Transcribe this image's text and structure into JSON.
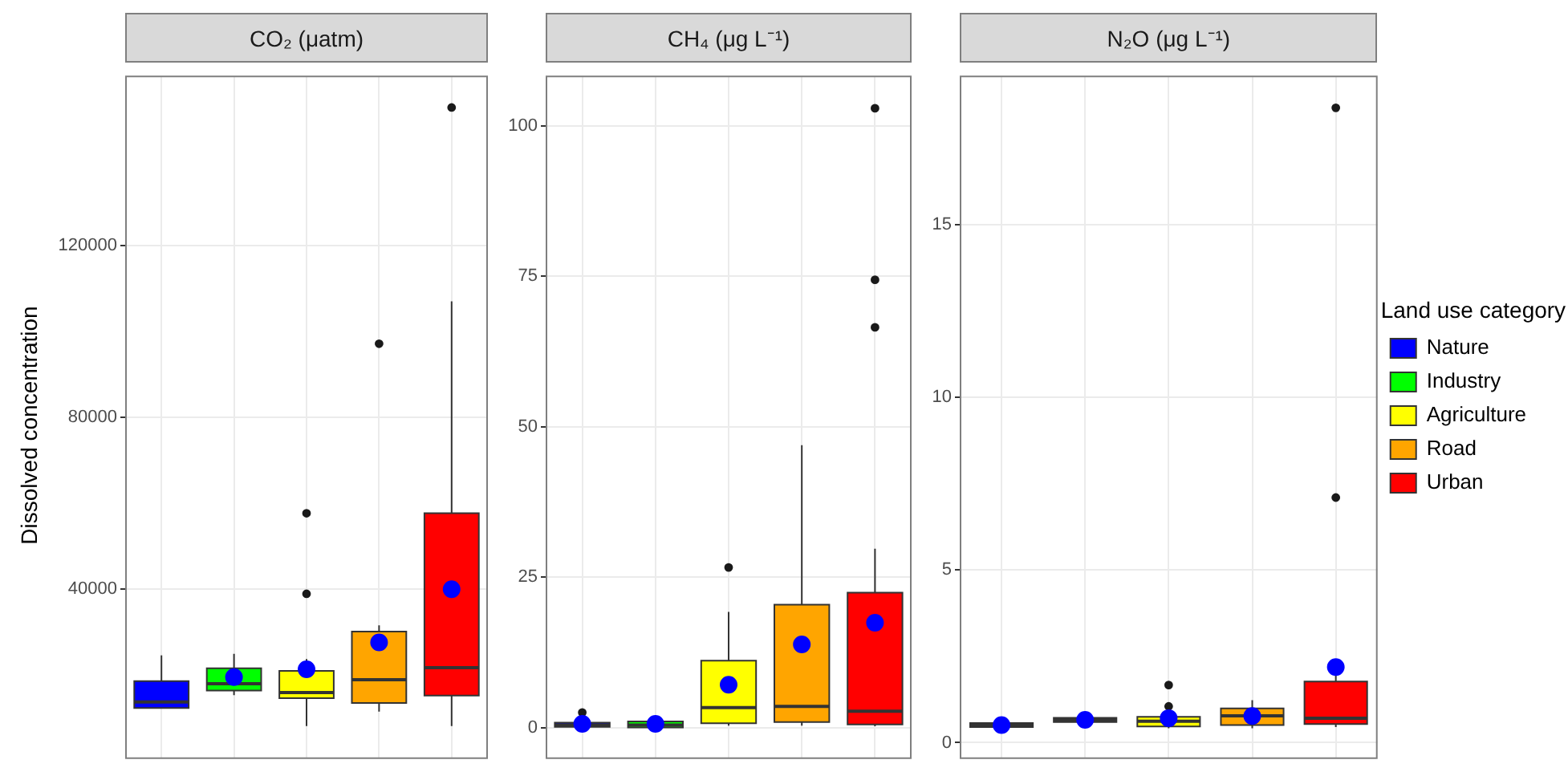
{
  "chart_data": [
    {
      "type": "box",
      "title": "CO₂ (μatm)",
      "ylabel": "Dissolved concentration",
      "categories": [
        null,
        null,
        null,
        null,
        null
      ],
      "series": [
        {
          "color": "#0000ff",
          "boxes": [
            {
              "low": 12270,
              "q1": 12270,
              "median": 13700,
              "q3": 18530,
              "high": 24540
            },
            null,
            null,
            null,
            null
          ]
        },
        {
          "color": "#00ff00",
          "boxes": [
            null,
            {
              "low": 15280,
              "q1": 16360,
              "median": 17920,
              "q3": 21530,
              "high": 24900,
              "mean": 19490
            },
            null,
            null,
            null
          ]
        },
        {
          "color": "#ffff00",
          "boxes": [
            null,
            null,
            {
              "low": 8060,
              "q1": 14560,
              "median": 15880,
              "q3": 20930,
              "high": 23700,
              "mean": 21290,
              "outliers": [
                38860,
                57620
              ]
            },
            null,
            null
          ]
        },
        {
          "color": "#ffa500",
          "boxes": [
            null,
            null,
            null,
            {
              "low": 11430,
              "q1": 13470,
              "median": 18890,
              "q3": 30080,
              "high": 31520,
              "mean": 27550,
              "outliers": [
                97080
              ]
            },
            null
          ]
        },
        {
          "color": "#ff0000",
          "boxes": [
            null,
            null,
            null,
            null,
            {
              "low": 8060,
              "q1": 15160,
              "median": 21650,
              "q3": 57620,
              "high": 106950,
              "mean": 39940,
              "outliers": [
                152060
              ]
            }
          ]
        }
      ],
      "ylim": [
        600,
        159300
      ],
      "yticks": [
        40000,
        80000,
        120000
      ],
      "grid": true,
      "tick_labels": "y"
    },
    {
      "type": "box",
      "title": "CH₄ (μg L⁻¹)",
      "categories": [
        null,
        null,
        null,
        null,
        null
      ],
      "series": [
        {
          "color": "#0000ff",
          "boxes": [
            {
              "low": 0,
              "q1": 0.1,
              "median": 0.4,
              "q3": 0.8,
              "high": 1.6,
              "mean": 0.6,
              "outliers": [
                2.5
              ]
            },
            null,
            null,
            null,
            null
          ]
        },
        {
          "color": "#00ff00",
          "boxes": [
            null,
            {
              "low": 0,
              "q1": 0,
              "median": 0.4,
              "q3": 1.0,
              "high": 1.0,
              "mean": 0.6
            },
            null,
            null,
            null
          ]
        },
        {
          "color": "#ffff00",
          "boxes": [
            null,
            null,
            {
              "low": 0.3,
              "q1": 0.7,
              "median": 3.3,
              "q3": 11.1,
              "high": 19.2,
              "mean": 7.1,
              "outliers": [
                26.6
              ]
            },
            null,
            null
          ]
        },
        {
          "color": "#ffa500",
          "boxes": [
            null,
            null,
            null,
            {
              "low": 0.3,
              "q1": 0.9,
              "median": 3.5,
              "q3": 20.4,
              "high": 46.9,
              "mean": 13.8
            },
            null
          ]
        },
        {
          "color": "#ff0000",
          "boxes": [
            null,
            null,
            null,
            null,
            {
              "low": 0.2,
              "q1": 0.5,
              "median": 2.7,
              "q3": 22.4,
              "high": 29.7,
              "mean": 17.4,
              "outliers": [
                66.5,
                74.4,
                102.9
              ]
            }
          ]
        }
      ],
      "ylim": [
        -5.1,
        108.2
      ],
      "yticks": [
        0,
        25,
        50,
        75,
        100
      ],
      "grid": true,
      "tick_labels": "y"
    },
    {
      "type": "box",
      "title": "N₂O (μg L⁻¹)",
      "legend_title": "Land use category",
      "legend": "right",
      "categories": [
        null,
        null,
        null,
        null,
        null
      ],
      "series": [
        {
          "name": "Nature",
          "color": "#0000ff",
          "boxes": [
            {
              "low": 0.45,
              "q1": 0.45,
              "median": 0.51,
              "q3": 0.57,
              "high": 0.57,
              "mean": 0.51
            },
            null,
            null,
            null,
            null
          ]
        },
        {
          "name": "Industry",
          "color": "#00ff00",
          "boxes": [
            null,
            {
              "low": 0.6,
              "q1": 0.6,
              "median": 0.66,
              "q3": 0.72,
              "high": 0.72,
              "mean": 0.66
            },
            null,
            null,
            null
          ]
        },
        {
          "name": "Agriculture",
          "color": "#ffff00",
          "boxes": [
            null,
            null,
            {
              "low": 0.42,
              "q1": 0.47,
              "median": 0.62,
              "q3": 0.75,
              "high": 0.83,
              "mean": 0.71,
              "outliers": [
                1.05,
                1.67
              ]
            },
            null,
            null
          ]
        },
        {
          "name": "Road",
          "color": "#ffa500",
          "boxes": [
            null,
            null,
            null,
            {
              "low": 0.42,
              "q1": 0.51,
              "median": 0.78,
              "q3": 0.99,
              "high": 1.23,
              "mean": 0.77
            },
            null
          ]
        },
        {
          "name": "Urban",
          "color": "#ff0000",
          "boxes": [
            null,
            null,
            null,
            null,
            {
              "low": 0.45,
              "q1": 0.54,
              "median": 0.71,
              "q3": 1.77,
              "high": 2.04,
              "mean": 2.19,
              "outliers": [
                7.1,
                18.39
              ]
            }
          ]
        }
      ],
      "ylim": [
        -0.45,
        19.3
      ],
      "yticks": [
        0,
        5,
        10,
        15
      ],
      "grid": true,
      "tick_labels": "y"
    }
  ]
}
